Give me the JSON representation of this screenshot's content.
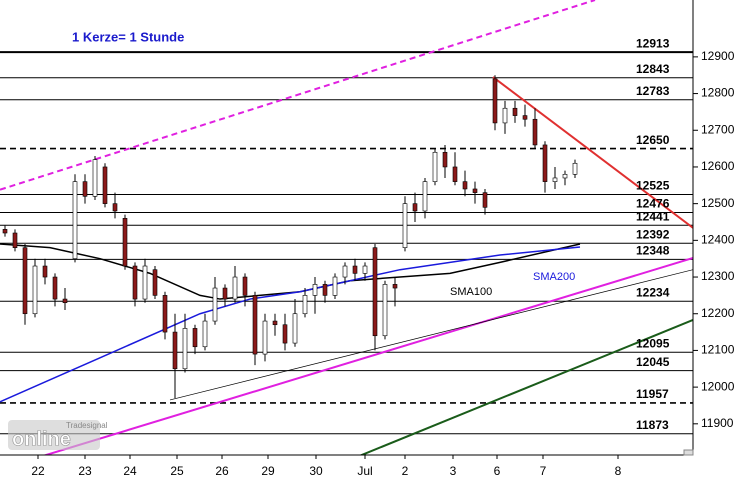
{
  "chart_data": {
    "type": "candlestick",
    "title": "1 Kerze= 1 Stunde",
    "watermark": [
      "Tradesignal",
      "online"
    ],
    "xlim": [
      0,
      138.6
    ],
    "xticks": [
      {
        "value": 7.6,
        "label": "22"
      },
      {
        "value": 17,
        "label": "23"
      },
      {
        "value": 26,
        "label": "24"
      },
      {
        "value": 35.4,
        "label": "25"
      },
      {
        "value": 44.4,
        "label": "26"
      },
      {
        "value": 53.6,
        "label": "29"
      },
      {
        "value": 63.2,
        "label": "30"
      },
      {
        "value": 73,
        "label": "Jul"
      },
      {
        "value": 81,
        "label": "2"
      },
      {
        "value": 90.6,
        "label": "3"
      },
      {
        "value": 99.4,
        "label": "6"
      },
      {
        "value": 108.6,
        "label": "7"
      },
      {
        "value": 123.6,
        "label": "8"
      }
    ],
    "ylim": [
      11815,
      13055
    ],
    "yticks": [
      11900,
      12000,
      12100,
      12200,
      12300,
      12400,
      12500,
      12600,
      12700,
      12800,
      12900
    ],
    "levels": [
      {
        "value": 12913
      },
      {
        "value": 12843
      },
      {
        "value": 12783
      },
      {
        "value": 12650,
        "dash": true
      },
      {
        "value": 12525
      },
      {
        "value": 12476
      },
      {
        "value": 12441
      },
      {
        "value": 12392
      },
      {
        "value": 12348
      },
      {
        "value": 12234
      },
      {
        "value": 12095
      },
      {
        "value": 12045
      },
      {
        "value": 11957,
        "dash": true
      },
      {
        "value": 11873
      }
    ],
    "candles": {
      "up_color": "#ffffff",
      "down_color": "#8b1a1a",
      "x": [
        1,
        3,
        5,
        7,
        9,
        11,
        13,
        15,
        17,
        19,
        21,
        23,
        25,
        27,
        29,
        31,
        33,
        35,
        37,
        39,
        41,
        43,
        45,
        47,
        49,
        51,
        53,
        55,
        57,
        59,
        61,
        63,
        65,
        67,
        69,
        71,
        73,
        75,
        77,
        79,
        81,
        83,
        85,
        87,
        89,
        91,
        93,
        95,
        97,
        99,
        101,
        103,
        105,
        107,
        109,
        111,
        113,
        115
      ],
      "ohlc": [
        [
          12430,
          12440,
          12410,
          12420
        ],
        [
          12420,
          12430,
          12370,
          12380
        ],
        [
          12380,
          12390,
          12170,
          12200
        ],
        [
          12200,
          12350,
          12190,
          12330
        ],
        [
          12330,
          12350,
          12280,
          12300
        ],
        [
          12300,
          12310,
          12220,
          12240
        ],
        [
          12240,
          12270,
          12210,
          12230
        ],
        [
          12350,
          12580,
          12340,
          12560
        ],
        [
          12560,
          12580,
          12500,
          12520
        ],
        [
          12520,
          12630,
          12510,
          12620
        ],
        [
          12600,
          12610,
          12490,
          12500
        ],
        [
          12500,
          12530,
          12460,
          12480
        ],
        [
          12460,
          12470,
          12320,
          12330
        ],
        [
          12330,
          12340,
          12220,
          12240
        ],
        [
          12240,
          12350,
          12230,
          12330
        ],
        [
          12320,
          12330,
          12240,
          12250
        ],
        [
          12250,
          12260,
          12130,
          12150
        ],
        [
          12150,
          12200,
          11970,
          12050
        ],
        [
          12050,
          12200,
          12040,
          12160
        ],
        [
          12160,
          12170,
          12090,
          12110
        ],
        [
          12110,
          12200,
          12100,
          12180
        ],
        [
          12180,
          12300,
          12170,
          12270
        ],
        [
          12270,
          12280,
          12220,
          12240
        ],
        [
          12240,
          12330,
          12230,
          12300
        ],
        [
          12300,
          12310,
          12220,
          12250
        ],
        [
          12250,
          12260,
          12060,
          12090
        ],
        [
          12090,
          12200,
          12070,
          12180
        ],
        [
          12180,
          12200,
          12140,
          12170
        ],
        [
          12170,
          12200,
          12100,
          12120
        ],
        [
          12120,
          12240,
          12110,
          12200
        ],
        [
          12200,
          12270,
          12190,
          12250
        ],
        [
          12250,
          12300,
          12200,
          12280
        ],
        [
          12280,
          12290,
          12230,
          12250
        ],
        [
          12250,
          12310,
          12240,
          12300
        ],
        [
          12300,
          12340,
          12280,
          12330
        ],
        [
          12330,
          12350,
          12290,
          12310
        ],
        [
          12310,
          12340,
          12290,
          12330
        ],
        [
          12380,
          12390,
          12100,
          12140
        ],
        [
          12140,
          12290,
          12130,
          12280
        ],
        [
          12280,
          12300,
          12220,
          12270
        ],
        [
          12380,
          12520,
          12370,
          12500
        ],
        [
          12500,
          12530,
          12450,
          12480
        ],
        [
          12480,
          12570,
          12460,
          12560
        ],
        [
          12560,
          12650,
          12550,
          12640
        ],
        [
          12640,
          12660,
          12570,
          12600
        ],
        [
          12600,
          12640,
          12550,
          12560
        ],
        [
          12560,
          12590,
          12520,
          12540
        ],
        [
          12540,
          12560,
          12500,
          12530
        ],
        [
          12530,
          12540,
          12470,
          12490
        ],
        [
          12840,
          12850,
          12700,
          12720
        ],
        [
          12720,
          12780,
          12690,
          12760
        ],
        [
          12760,
          12780,
          12720,
          12740
        ],
        [
          12740,
          12770,
          12710,
          12730
        ],
        [
          12730,
          12760,
          12650,
          12660
        ],
        [
          12660,
          12670,
          12530,
          12560
        ],
        [
          12560,
          12600,
          12540,
          12570
        ],
        [
          12570,
          12590,
          12550,
          12580
        ],
        [
          12580,
          12620,
          12570,
          12610
        ]
      ]
    },
    "series": [
      {
        "name": "SMA100",
        "color": "#000000",
        "x": [
          0,
          10,
          20,
          30,
          40,
          44,
          60,
          70,
          80,
          90,
          100,
          116
        ],
        "values": [
          12390,
          12380,
          12350,
          12310,
          12250,
          12240,
          12260,
          12290,
          12300,
          12310,
          12340,
          12390
        ]
      },
      {
        "name": "SMA200",
        "color": "#1a1adc",
        "x": [
          0,
          20,
          40,
          50,
          60,
          70,
          80,
          90,
          100,
          116
        ],
        "values": [
          11960,
          12080,
          12200,
          12240,
          12260,
          12290,
          12320,
          12340,
          12360,
          12382
        ]
      }
    ],
    "trendlines": [
      {
        "color": "#e020e0",
        "dash": true,
        "x": [
          0,
          119
        ],
        "y": [
          12538,
          13055
        ]
      },
      {
        "color": "#e020e0",
        "dash": false,
        "x": [
          8,
          138.6
        ],
        "y": [
          11810,
          12352
        ]
      },
      {
        "color": "#000000",
        "dash": false,
        "x": [
          34,
          138.6
        ],
        "y": [
          11965,
          12320
        ]
      },
      {
        "color": "#1a5c1a",
        "dash": false,
        "x": [
          70,
          138.6
        ],
        "y": [
          11802,
          12183
        ]
      },
      {
        "color": "#e03030",
        "dash": false,
        "x": [
          98.6,
          138.6
        ],
        "y": [
          12845,
          12434
        ]
      }
    ]
  }
}
